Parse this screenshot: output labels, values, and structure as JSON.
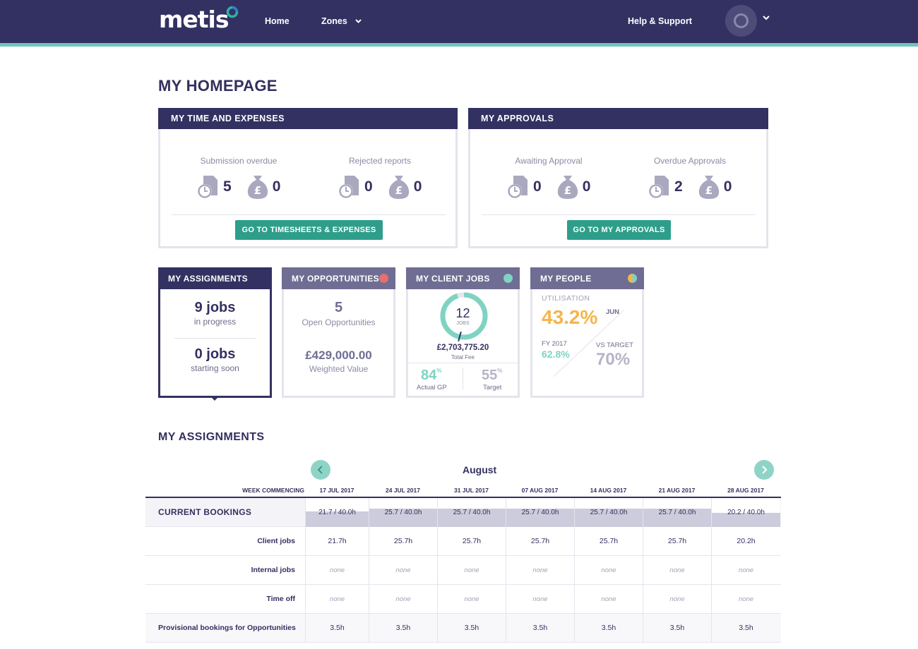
{
  "nav": {
    "logo": "metis",
    "home": "Home",
    "zones": "Zones",
    "help": "Help & Support"
  },
  "page_title": "MY HOMEPAGE",
  "time_expenses": {
    "title": "MY TIME AND EXPENSES",
    "submission_label": "Submission overdue",
    "submission_time": "5",
    "submission_money": "0",
    "rejected_label": "Rejected reports",
    "rejected_time": "0",
    "rejected_money": "0",
    "button": "GO TO TIMESHEETS & EXPENSES"
  },
  "approvals": {
    "title": "MY APPROVALS",
    "awaiting_label": "Awaiting Approval",
    "awaiting_time": "0",
    "awaiting_money": "0",
    "overdue_label": "Overdue Approvals",
    "overdue_time": "2",
    "overdue_money": "0",
    "button": "GO TO MY APPROVALS"
  },
  "cards": {
    "assignments": {
      "title": "MY ASSIGNMENTS",
      "jobs_progress": "9 jobs",
      "in_progress": "in progress",
      "jobs_soon": "0 jobs",
      "starting_soon": "starting soon"
    },
    "opportunities": {
      "title": "MY OPPORTUNITIES",
      "dot_color": "#e66f6f",
      "count": "5",
      "count_label": "Open Opportunities",
      "weighted": "£429,000.00",
      "weighted_label": "Weighted Value"
    },
    "client_jobs": {
      "title": "MY CLIENT JOBS",
      "dot_color": "#7fd3c2",
      "jobs": "12",
      "jobs_label": "JOBS",
      "progress": 0.95,
      "fee": "£2,703,775.20",
      "fee_label": "Total Fee",
      "actual_gp": "84",
      "actual_label": "Actual GP",
      "target": "55",
      "target_label": "Target",
      "pct": "%"
    },
    "people": {
      "title": "MY PEOPLE",
      "util_label": "UTILISATION",
      "util_value": "43.2%",
      "month": "JUN",
      "fy_label": "FY 2017",
      "fy_value": "62.8%",
      "vs_label": "VS TARGET",
      "vs_value": "70%"
    }
  },
  "assignments": {
    "title": "MY ASSIGNMENTS",
    "month": "August",
    "week_label": "WEEK COMMENCING",
    "weeks": [
      "17 JUL 2017",
      "24 JUL 2017",
      "31 JUL 2017",
      "07 AUG 2017",
      "14 AUG 2017",
      "21 AUG 2017",
      "28 AUG 2017"
    ],
    "current_label": "CURRENT BOOKINGS",
    "bookings": [
      "21.7 / 40.0h",
      "25.7 / 40.0h",
      "25.7 / 40.0h",
      "25.7 / 40.0h",
      "25.7 / 40.0h",
      "25.7 / 40.0h",
      "20.2 / 40.0h"
    ],
    "booking_fraction": [
      0.54,
      0.64,
      0.64,
      0.64,
      0.64,
      0.64,
      0.5
    ],
    "client_label": "Client jobs",
    "client": [
      "21.7h",
      "25.7h",
      "25.7h",
      "25.7h",
      "25.7h",
      "25.7h",
      "20.2h"
    ],
    "internal_label": "Internal jobs",
    "internal": [
      "none",
      "none",
      "none",
      "none",
      "none",
      "none",
      "none"
    ],
    "timeoff_label": "Time off",
    "timeoff": [
      "none",
      "none",
      "none",
      "none",
      "none",
      "none",
      "none"
    ],
    "provisional_label": "Provisional bookings for Opportunities",
    "provisional": [
      "3.5h",
      "3.5h",
      "3.5h",
      "3.5h",
      "3.5h",
      "3.5h",
      "3.5h"
    ]
  },
  "colors": {
    "navy": "#333162",
    "teal": "#2e9e8a",
    "mint": "#6dc6b9",
    "orange": "#f6b54a",
    "muted_head": "#6f6d93"
  }
}
